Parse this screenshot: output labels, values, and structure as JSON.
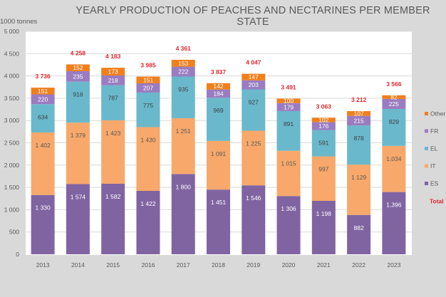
{
  "chart_data": {
    "type": "bar",
    "stacked": true,
    "title": "YEARLY PRODUCTION OF PEACHES AND NECTARINES PER MEMBER STATE",
    "ylabel": "1000 tonnes",
    "xlabel": "",
    "ylim": [
      0,
      5000
    ],
    "yticks": [
      0,
      500,
      1000,
      1500,
      2000,
      2500,
      3000,
      3500,
      4000,
      4500,
      5000
    ],
    "ytick_labels": [
      "0",
      "500",
      "1 000",
      "1 500",
      "2 000",
      "2 500",
      "3 000",
      "3 500",
      "4 000",
      "4 500",
      "5 000"
    ],
    "grid": true,
    "legend_position": "right",
    "categories": [
      "2013",
      "2014",
      "2015",
      "2016",
      "2017",
      "2018",
      "2019",
      "2020",
      "2021",
      "2022",
      "2023"
    ],
    "series": [
      {
        "name": "ES",
        "color": "#8064a2",
        "label_color": "#ffffff",
        "values": [
          1330,
          1574,
          1582,
          1422,
          1800,
          1451,
          1546,
          1306,
          1198,
          882,
          1396
        ],
        "labels": [
          "1 330",
          "1 574",
          "1 582",
          "1 422",
          "1 800",
          "1 451",
          "1 546",
          "1 306",
          "1 198",
          "882",
          "1,396"
        ]
      },
      {
        "name": "IT",
        "color": "#f7a86a",
        "label_color": "#595959",
        "values": [
          1402,
          1379,
          1423,
          1430,
          1251,
          1091,
          1225,
          1015,
          997,
          1129,
          1034
        ],
        "labels": [
          "1 402",
          "1 379",
          "1 423",
          "1 430",
          "1 251",
          "1 091",
          "1 225",
          "1 015",
          "997",
          "1 129",
          "1,034"
        ]
      },
      {
        "name": "EL",
        "color": "#6ab8cc",
        "label_color": "#404040",
        "values": [
          634,
          918,
          787,
          775,
          935,
          969,
          927,
          891,
          591,
          878,
          829
        ],
        "labels": [
          "634",
          "918",
          "787",
          "775",
          "935",
          "969",
          "927",
          "891",
          "591",
          "878",
          "829"
        ]
      },
      {
        "name": "FR",
        "color": "#9a7cc0",
        "label_color": "#ffffff",
        "values": [
          220,
          235,
          218,
          207,
          222,
          184,
          203,
          179,
          176,
          215,
          225
        ],
        "labels": [
          "220",
          "235",
          "218",
          "207",
          "222",
          "184",
          "203",
          "179",
          "176",
          "215",
          "225"
        ]
      },
      {
        "name": "Other",
        "color": "#f07f1c",
        "label_color": "#ffffff",
        "values": [
          151,
          152,
          173,
          151,
          153,
          142,
          147,
          100,
          102,
          107,
          82
        ],
        "labels": [
          "151",
          "152",
          "173",
          "151",
          "153",
          "142",
          "147",
          "100",
          "102",
          "107",
          "82"
        ]
      }
    ],
    "totals": [
      3736,
      4258,
      4183,
      3985,
      4361,
      3837,
      4047,
      3491,
      3063,
      3212,
      3566
    ],
    "total_labels": [
      "3 736",
      "4 258",
      "4 183",
      "3 985",
      "4 361",
      "3 837",
      "4 047",
      "3 491",
      "3 063",
      "3 212",
      "3 566"
    ],
    "total_color": "#e0262c",
    "legend": [
      "Other",
      "FR",
      "EL",
      "IT",
      "ES",
      "Total"
    ]
  }
}
